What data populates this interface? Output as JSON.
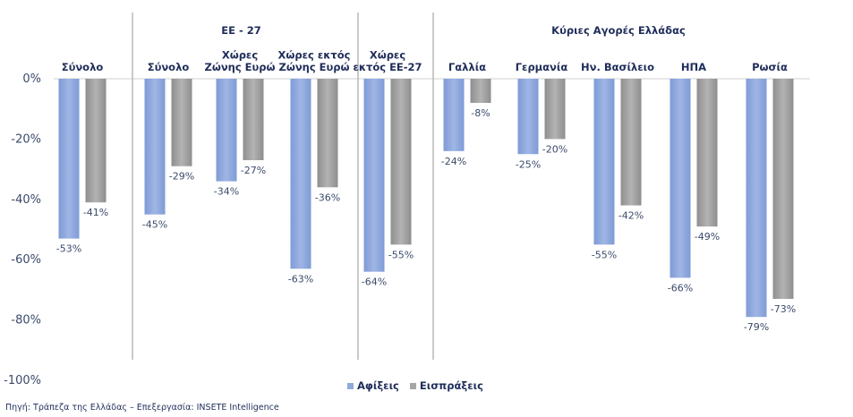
{
  "chart_data": {
    "type": "bar",
    "ylim": [
      -100,
      0
    ],
    "y_ticks": [
      "0%",
      "-20%",
      "-40%",
      "-60%",
      "-80%",
      "-100%"
    ],
    "y_tick_values": [
      0,
      -20,
      -40,
      -60,
      -80,
      -100
    ],
    "groups": [
      {
        "label": "",
        "categories": [
          0
        ]
      },
      {
        "label": "ΕΕ - 27",
        "categories": [
          1,
          2,
          3
        ]
      },
      {
        "label": "",
        "categories": [
          4
        ]
      },
      {
        "label": "Κύριες Αγορές Ελλάδας",
        "categories": [
          5,
          6,
          7,
          8,
          9
        ]
      }
    ],
    "categories": [
      [
        "Σύνολο"
      ],
      [
        "Σύνολο"
      ],
      [
        "Χώρες",
        "Ζώνης Ευρώ"
      ],
      [
        "Χώρες εκτός",
        "Ζώνης Ευρώ"
      ],
      [
        "Χώρες",
        "εκτός ΕΕ-27"
      ],
      [
        "Γαλλία"
      ],
      [
        "Γερμανία"
      ],
      [
        "Ην. Βασίλειο"
      ],
      [
        "ΗΠΑ"
      ],
      [
        "Ρωσία"
      ]
    ],
    "series": [
      {
        "name": "Αφίξεις",
        "color": "#8faadc",
        "values": [
          -53,
          -45,
          -34,
          -63,
          -64,
          -24,
          -25,
          -55,
          -66,
          -79
        ],
        "labels": [
          "-53%",
          "-45%",
          "-34%",
          "-63%",
          "-64%",
          "-24%",
          "-25%",
          "-55%",
          "-66%",
          "-79%"
        ]
      },
      {
        "name": "Εισπράξεις",
        "color": "#a6a6a6",
        "values": [
          -41,
          -29,
          -27,
          -36,
          -55,
          -8,
          -20,
          -42,
          -49,
          -73
        ],
        "labels": [
          "-41%",
          "-29%",
          "-27%",
          "-36%",
          "-55%",
          "-8%",
          "-20%",
          "-42%",
          "-49%",
          "-73%"
        ]
      }
    ],
    "legend_position": "bottom-center"
  },
  "source": "Πηγή: Τράπεζα της Ελλάδας – Επεξεργασία: INSETE Intelligence"
}
